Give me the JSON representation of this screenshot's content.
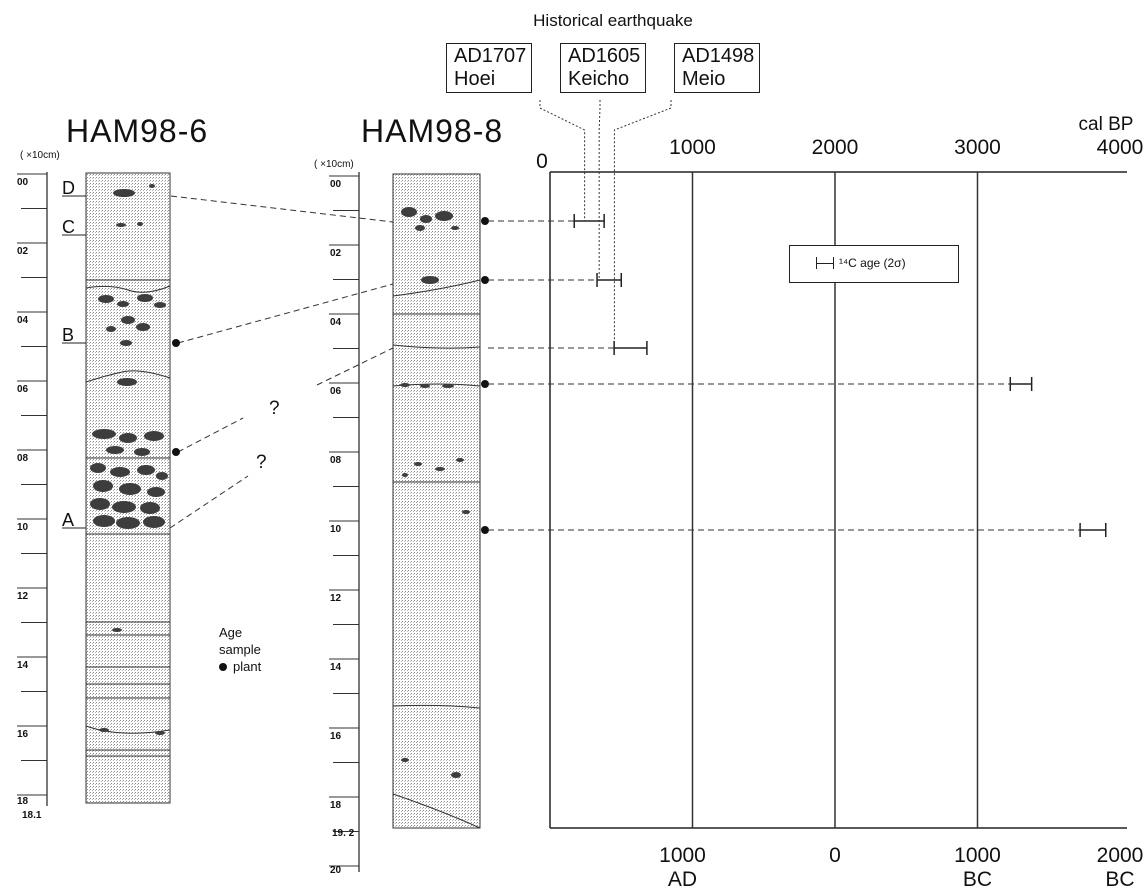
{
  "historical": {
    "heading": "Historical earthquake",
    "events": [
      {
        "year": "AD1707",
        "name": "Hoei"
      },
      {
        "year": "AD1605",
        "name": "Keicho"
      },
      {
        "year": "AD1498",
        "name": "Meio"
      }
    ]
  },
  "cores": [
    {
      "title": "HAM98-6",
      "unit": "( ×10cm)",
      "depth_labels": [
        "00",
        "02",
        "04",
        "06",
        "08",
        "10",
        "12",
        "14",
        "16",
        "18"
      ],
      "bottom_label": "18.1",
      "unit_letters": [
        "D",
        "C",
        "B",
        "A"
      ],
      "question_marks": [
        "?",
        "?"
      ]
    },
    {
      "title": "HAM98-8",
      "unit": "( ×10cm)",
      "depth_labels": [
        "00",
        "02",
        "04",
        "06",
        "08",
        "10",
        "12",
        "14",
        "16",
        "18",
        "20"
      ],
      "bottom_label": "19. 2"
    }
  ],
  "legend": {
    "title_line1": "Age",
    "title_line2": "sample",
    "item": "plant"
  },
  "c14_legend": "¹⁴C age (2σ)",
  "age_axis": {
    "top_unit": "cal BP",
    "top_ticks": [
      "0",
      "1000",
      "2000",
      "3000",
      "4000"
    ],
    "bottom_ticks": [
      {
        "value": "1000",
        "era": "AD"
      },
      {
        "value": "0",
        "era": ""
      },
      {
        "value": "1000",
        "era": "BC"
      },
      {
        "value": "2000",
        "era": "BC"
      }
    ]
  },
  "chart_data": {
    "type": "scatter",
    "xlabel": "cal BP",
    "xlim": [
      0,
      4000
    ],
    "grid": true,
    "age_ranges_cal_bp": [
      {
        "min": 170,
        "max": 380
      },
      {
        "min": 330,
        "max": 500
      },
      {
        "min": 450,
        "max": 680
      },
      {
        "min": 3230,
        "max": 3380
      },
      {
        "min": 3720,
        "max": 3900
      }
    ],
    "historical_earthquakes_cal_bp": [
      243,
      345,
      452
    ]
  }
}
